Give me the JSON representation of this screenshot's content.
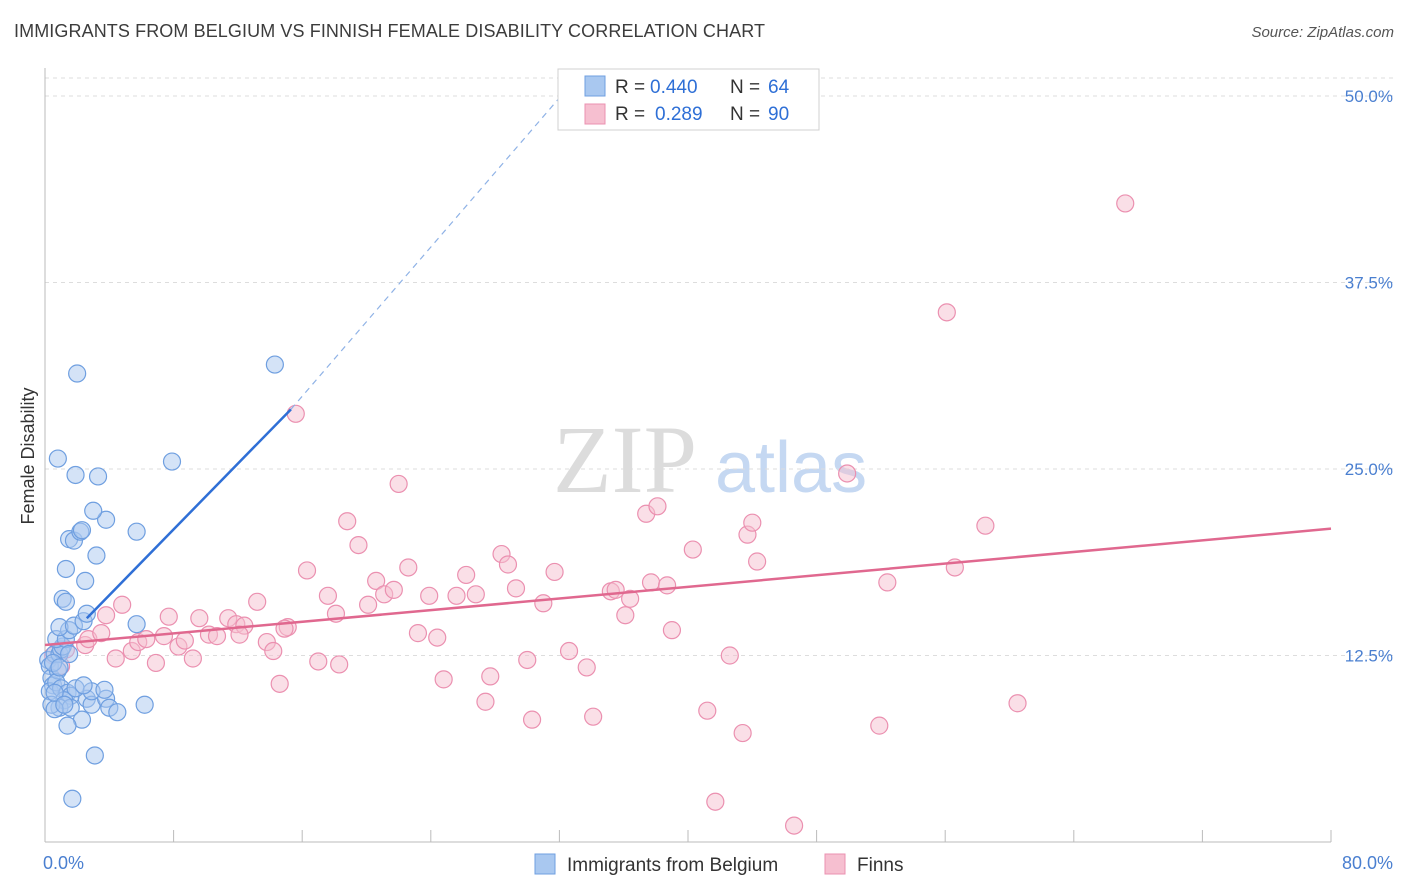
{
  "header": {
    "title": "IMMIGRANTS FROM BELGIUM VS FINNISH FEMALE DISABILITY CORRELATION CHART",
    "source": "Source: ZipAtlas.com"
  },
  "watermark": {
    "zip": "ZIP",
    "atlas": "atlas"
  },
  "colors": {
    "blue_fill": "#a9c8f0",
    "blue_stroke": "#6f9fe0",
    "blue_line": "#2f6fd6",
    "pink_fill": "#f6bfd0",
    "pink_stroke": "#eb90b0",
    "pink_line": "#e0688f",
    "tick_label": "#4a7fd0",
    "grid": "#dddddd"
  },
  "chart_data": {
    "type": "scatter",
    "title": "IMMIGRANTS FROM BELGIUM VS FINNISH FEMALE DISABILITY CORRELATION CHART",
    "xlabel": "",
    "ylabel": "Female Disability",
    "xlim": [
      0,
      80
    ],
    "ylim": [
      0,
      50
    ],
    "x_tick_labels": [
      "0.0%",
      "80.0%"
    ],
    "y_ticks": [
      12.5,
      25.0,
      37.5,
      50.0
    ],
    "y_tick_labels": [
      "12.5%",
      "25.0%",
      "37.5%",
      "50.0%"
    ],
    "grid": "horizontal dashed",
    "legend_position": "top-center",
    "legend": [
      {
        "r_label": "R = ",
        "r_value": "0.440",
        "n_label": "N = ",
        "n_value": "64"
      },
      {
        "r_label": "R = ",
        "r_value": "0.289",
        "n_label": "N = ",
        "n_value": "90"
      }
    ],
    "series": [
      {
        "name": "Immigrants from Belgium",
        "color": "#a9c8f0",
        "trend": {
          "x0": 2.6,
          "y0": 15.0,
          "x1": 15.3,
          "y1": 29.0,
          "extend_x": 32.1,
          "extend_y": 50.0
        },
        "points": [
          [
            0.2,
            12.2
          ],
          [
            0.3,
            11.8
          ],
          [
            0.4,
            11.0
          ],
          [
            0.5,
            10.5
          ],
          [
            0.6,
            12.6
          ],
          [
            0.3,
            10.1
          ],
          [
            0.8,
            11.5
          ],
          [
            0.9,
            12.6
          ],
          [
            1.0,
            12.9
          ],
          [
            1.1,
            13.1
          ],
          [
            0.7,
            13.6
          ],
          [
            1.3,
            13.6
          ],
          [
            1.5,
            14.2
          ],
          [
            0.9,
            14.4
          ],
          [
            1.8,
            14.5
          ],
          [
            2.4,
            14.8
          ],
          [
            2.6,
            15.3
          ],
          [
            1.1,
            16.3
          ],
          [
            1.3,
            16.1
          ],
          [
            2.5,
            17.5
          ],
          [
            1.3,
            18.3
          ],
          [
            3.2,
            19.2
          ],
          [
            1.5,
            20.3
          ],
          [
            1.8,
            20.2
          ],
          [
            2.2,
            20.8
          ],
          [
            2.3,
            20.9
          ],
          [
            3.8,
            21.6
          ],
          [
            5.7,
            20.8
          ],
          [
            3.0,
            22.2
          ],
          [
            0.8,
            25.7
          ],
          [
            1.9,
            24.6
          ],
          [
            3.3,
            24.5
          ],
          [
            7.9,
            25.5
          ],
          [
            2.0,
            31.4
          ],
          [
            14.3,
            32.0
          ],
          [
            0.7,
            10.7
          ],
          [
            1.0,
            10.3
          ],
          [
            1.4,
            10.0
          ],
          [
            1.6,
            9.8
          ],
          [
            1.2,
            9.5
          ],
          [
            0.9,
            9.0
          ],
          [
            1.6,
            9.0
          ],
          [
            2.6,
            9.6
          ],
          [
            2.9,
            9.2
          ],
          [
            3.8,
            9.6
          ],
          [
            4.0,
            9.0
          ],
          [
            4.5,
            8.7
          ],
          [
            6.2,
            9.2
          ],
          [
            2.3,
            8.2
          ],
          [
            1.4,
            7.8
          ],
          [
            3.1,
            5.8
          ],
          [
            1.7,
            2.9
          ],
          [
            0.4,
            9.2
          ],
          [
            0.6,
            8.9
          ],
          [
            0.5,
            12.0
          ],
          [
            0.9,
            11.7
          ],
          [
            1.9,
            10.3
          ],
          [
            2.9,
            10.1
          ],
          [
            3.7,
            10.2
          ],
          [
            5.7,
            14.6
          ],
          [
            2.4,
            10.5
          ],
          [
            0.6,
            10.0
          ],
          [
            1.2,
            9.2
          ],
          [
            1.5,
            12.6
          ]
        ]
      },
      {
        "name": "Finns",
        "color": "#f6bfd0",
        "trend": {
          "x0": 0.0,
          "y0": 13.2,
          "x1": 80.0,
          "y1": 21.0
        },
        "points": [
          [
            0.5,
            12.5
          ],
          [
            1.0,
            11.8
          ],
          [
            1.3,
            12.9
          ],
          [
            2.5,
            13.2
          ],
          [
            2.7,
            13.6
          ],
          [
            3.5,
            14.0
          ],
          [
            3.8,
            15.2
          ],
          [
            4.4,
            12.3
          ],
          [
            4.8,
            15.9
          ],
          [
            5.4,
            12.8
          ],
          [
            5.8,
            13.4
          ],
          [
            6.3,
            13.6
          ],
          [
            6.9,
            12.0
          ],
          [
            7.4,
            13.8
          ],
          [
            7.7,
            15.1
          ],
          [
            8.3,
            13.1
          ],
          [
            8.7,
            13.5
          ],
          [
            9.2,
            12.3
          ],
          [
            9.6,
            15.0
          ],
          [
            10.2,
            13.9
          ],
          [
            10.7,
            13.8
          ],
          [
            11.4,
            15.0
          ],
          [
            11.9,
            14.6
          ],
          [
            12.4,
            14.5
          ],
          [
            13.2,
            16.1
          ],
          [
            13.8,
            13.4
          ],
          [
            14.2,
            12.8
          ],
          [
            14.6,
            10.6
          ],
          [
            15.1,
            14.4
          ],
          [
            15.6,
            28.7
          ],
          [
            16.3,
            18.2
          ],
          [
            17.0,
            12.1
          ],
          [
            17.6,
            16.5
          ],
          [
            18.1,
            15.3
          ],
          [
            18.3,
            11.9
          ],
          [
            18.8,
            21.5
          ],
          [
            19.5,
            19.9
          ],
          [
            20.1,
            15.9
          ],
          [
            20.6,
            17.5
          ],
          [
            21.1,
            16.6
          ],
          [
            21.7,
            16.9
          ],
          [
            22.0,
            24.0
          ],
          [
            22.6,
            18.4
          ],
          [
            23.2,
            14.0
          ],
          [
            23.9,
            16.5
          ],
          [
            24.4,
            13.7
          ],
          [
            24.8,
            10.9
          ],
          [
            25.6,
            16.5
          ],
          [
            26.2,
            17.9
          ],
          [
            26.8,
            16.6
          ],
          [
            27.4,
            9.4
          ],
          [
            27.7,
            11.1
          ],
          [
            28.4,
            19.3
          ],
          [
            28.8,
            18.6
          ],
          [
            29.3,
            17.0
          ],
          [
            30.0,
            12.2
          ],
          [
            30.3,
            8.2
          ],
          [
            31.0,
            16.0
          ],
          [
            31.7,
            18.1
          ],
          [
            32.6,
            12.8
          ],
          [
            33.7,
            11.7
          ],
          [
            34.1,
            8.4
          ],
          [
            35.2,
            16.8
          ],
          [
            35.5,
            16.9
          ],
          [
            36.1,
            15.2
          ],
          [
            36.4,
            16.3
          ],
          [
            37.4,
            22.0
          ],
          [
            37.7,
            17.4
          ],
          [
            38.1,
            22.5
          ],
          [
            38.7,
            17.2
          ],
          [
            39.0,
            14.2
          ],
          [
            40.3,
            19.6
          ],
          [
            41.2,
            8.8
          ],
          [
            41.7,
            2.7
          ],
          [
            42.6,
            12.5
          ],
          [
            43.4,
            7.3
          ],
          [
            43.7,
            20.6
          ],
          [
            44.0,
            21.4
          ],
          [
            44.3,
            18.8
          ],
          [
            46.6,
            1.1
          ],
          [
            49.9,
            24.7
          ],
          [
            51.9,
            7.8
          ],
          [
            52.4,
            17.4
          ],
          [
            56.1,
            35.5
          ],
          [
            56.6,
            18.4
          ],
          [
            58.5,
            21.2
          ],
          [
            60.5,
            9.3
          ],
          [
            67.2,
            42.8
          ],
          [
            12.1,
            13.9
          ],
          [
            14.9,
            14.3
          ]
        ]
      }
    ]
  },
  "bottom_legend": [
    {
      "label": "Immigrants from Belgium"
    },
    {
      "label": "Finns"
    }
  ]
}
